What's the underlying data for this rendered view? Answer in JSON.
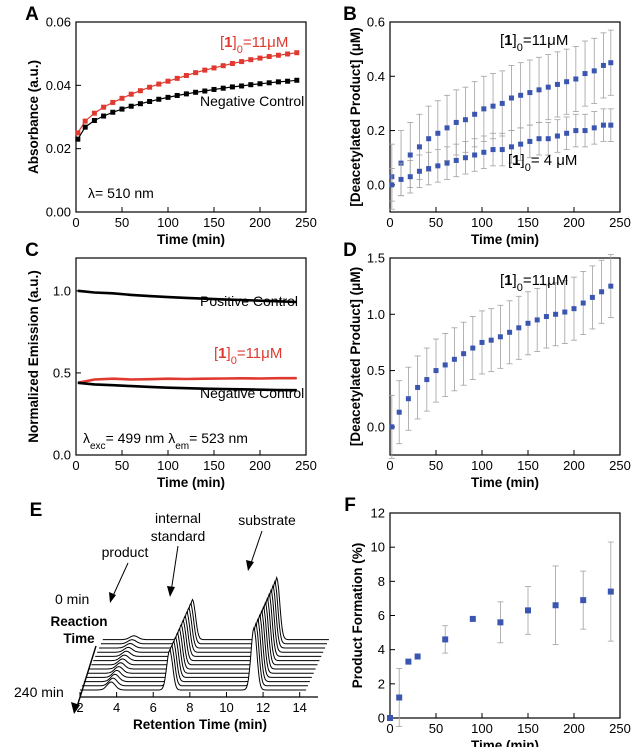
{
  "colors": {
    "red": "#e03a30",
    "black": "#000000",
    "blue": "#3a56b0",
    "error": "#a0a0a0"
  },
  "chart_data": [
    {
      "panel": "A",
      "type": "scatter",
      "xlabel": "Time (min)",
      "ylabel": "Absorbance (a.u.)",
      "xlim": [
        0,
        250
      ],
      "ylim": [
        0,
        0.06
      ],
      "xticks": [
        "0",
        "50",
        "100",
        "150",
        "200",
        "250"
      ],
      "yticks": [
        "0.00",
        "0.02",
        "0.04",
        "0.06"
      ],
      "series": [
        {
          "name": "[1]0=11μM",
          "color": "red",
          "x": [
            2,
            10,
            20,
            30,
            40,
            50,
            60,
            70,
            80,
            90,
            100,
            110,
            120,
            130,
            140,
            150,
            160,
            170,
            180,
            190,
            200,
            210,
            220,
            230,
            240
          ],
          "y": [
            0.025,
            0.0287,
            0.0312,
            0.0331,
            0.0346,
            0.0359,
            0.0372,
            0.0383,
            0.0394,
            0.0404,
            0.0413,
            0.0422,
            0.0431,
            0.044,
            0.0448,
            0.0455,
            0.0462,
            0.0469,
            0.0475,
            0.0481,
            0.0486,
            0.0491,
            0.0495,
            0.0499,
            0.0503
          ]
        },
        {
          "name": "Negative Control",
          "color": "black",
          "x": [
            2,
            10,
            20,
            30,
            40,
            50,
            60,
            70,
            80,
            90,
            100,
            110,
            120,
            130,
            140,
            150,
            160,
            170,
            180,
            190,
            200,
            210,
            220,
            230,
            240
          ],
          "y": [
            0.023,
            0.0268,
            0.0289,
            0.0303,
            0.0315,
            0.0325,
            0.0334,
            0.0342,
            0.0349,
            0.0356,
            0.0362,
            0.0368,
            0.0373,
            0.0378,
            0.0382,
            0.0387,
            0.0391,
            0.0395,
            0.0398,
            0.0402,
            0.0405,
            0.0408,
            0.0411,
            0.0413,
            0.0416
          ]
        }
      ],
      "annotations": [
        {
          "id": "a-red",
          "parts": [
            {
              "t": "["
            },
            {
              "t": "1",
              "b": true
            },
            {
              "t": "]"
            },
            {
              "t": "0",
              "sub": true
            },
            {
              "t": "=11"
            },
            {
              "t": "μ"
            },
            {
              "t": "M"
            }
          ],
          "color": "red"
        },
        {
          "id": "a-neg",
          "parts": [
            {
              "t": "Negative Control"
            }
          ],
          "color": "black"
        },
        {
          "id": "a-lam",
          "parts": [
            {
              "t": "λ= 510 nm"
            }
          ],
          "color": "black"
        }
      ]
    },
    {
      "panel": "B",
      "type": "scatter",
      "xlabel": "Time (min)",
      "ylabel": "[Deacetylated Product] (μM)",
      "xlim": [
        0,
        250
      ],
      "ylim": [
        -0.1,
        0.6
      ],
      "xticks": [
        "0",
        "50",
        "100",
        "150",
        "200",
        "250"
      ],
      "yticks": [
        "0.0",
        "0.2",
        "0.4",
        "0.6"
      ],
      "series": [
        {
          "name": "[1]0=11μM",
          "color": "blue",
          "x": [
            2,
            12,
            22,
            32,
            42,
            52,
            62,
            72,
            82,
            92,
            102,
            112,
            122,
            132,
            142,
            152,
            162,
            172,
            182,
            192,
            202,
            212,
            222,
            232,
            240
          ],
          "y": [
            0.03,
            0.08,
            0.11,
            0.14,
            0.17,
            0.19,
            0.21,
            0.23,
            0.24,
            0.26,
            0.28,
            0.29,
            0.3,
            0.32,
            0.33,
            0.34,
            0.35,
            0.36,
            0.37,
            0.38,
            0.39,
            0.41,
            0.42,
            0.44,
            0.45
          ],
          "err": 0.12
        },
        {
          "name": "[1]0= 4μM",
          "color": "blue",
          "x": [
            2,
            12,
            22,
            32,
            42,
            52,
            62,
            72,
            82,
            92,
            102,
            112,
            122,
            132,
            142,
            152,
            162,
            172,
            182,
            192,
            202,
            212,
            222,
            232,
            240
          ],
          "y": [
            0.0,
            0.02,
            0.03,
            0.05,
            0.06,
            0.07,
            0.08,
            0.09,
            0.1,
            0.11,
            0.12,
            0.13,
            0.13,
            0.14,
            0.15,
            0.16,
            0.17,
            0.17,
            0.18,
            0.19,
            0.2,
            0.2,
            0.21,
            0.22,
            0.22
          ],
          "err": 0.06
        }
      ],
      "annotations": [
        {
          "id": "b-11",
          "parts": [
            {
              "t": "["
            },
            {
              "t": "1",
              "b": true
            },
            {
              "t": "]"
            },
            {
              "t": "0",
              "sub": true
            },
            {
              "t": "=11"
            },
            {
              "t": "μ"
            },
            {
              "t": "M"
            }
          ],
          "color": "black"
        },
        {
          "id": "b-4",
          "parts": [
            {
              "t": "["
            },
            {
              "t": "1",
              "b": true
            },
            {
              "t": "]"
            },
            {
              "t": "0",
              "sub": true
            },
            {
              "t": "= 4 "
            },
            {
              "t": "μ"
            },
            {
              "t": "M"
            }
          ],
          "color": "black"
        }
      ]
    },
    {
      "panel": "C",
      "type": "line",
      "xlabel": "Time (min)",
      "ylabel": "Normalized Emission (a.u.)",
      "xlim": [
        0,
        250
      ],
      "ylim": [
        0,
        1.2
      ],
      "xticks": [
        "0",
        "50",
        "100",
        "150",
        "200",
        "250"
      ],
      "yticks": [
        "0.0",
        "0.5",
        "1.0"
      ],
      "series": [
        {
          "name": "Positive Control",
          "color": "black",
          "x": [
            2,
            20,
            40,
            60,
            80,
            100,
            120,
            140,
            160,
            180,
            200,
            220,
            240
          ],
          "y": [
            1.0,
            0.99,
            0.985,
            0.975,
            0.968,
            0.962,
            0.957,
            0.952,
            0.948,
            0.944,
            0.94,
            0.936,
            0.932
          ]
        },
        {
          "name": "[1]0=11μM",
          "color": "red",
          "x": [
            2,
            20,
            40,
            60,
            80,
            100,
            120,
            140,
            160,
            180,
            200,
            220,
            240
          ],
          "y": [
            0.44,
            0.46,
            0.465,
            0.46,
            0.462,
            0.465,
            0.463,
            0.465,
            0.466,
            0.467,
            0.466,
            0.468,
            0.468
          ]
        },
        {
          "name": "Negative Control",
          "color": "black",
          "x": [
            2,
            20,
            40,
            60,
            80,
            100,
            120,
            140,
            160,
            180,
            200,
            220,
            240
          ],
          "y": [
            0.44,
            0.43,
            0.425,
            0.42,
            0.415,
            0.41,
            0.407,
            0.404,
            0.402,
            0.4,
            0.398,
            0.396,
            0.395
          ]
        }
      ],
      "annotations": [
        {
          "id": "c-pos",
          "parts": [
            {
              "t": "Positive Control"
            }
          ],
          "color": "black"
        },
        {
          "id": "c-red",
          "parts": [
            {
              "t": "["
            },
            {
              "t": "1",
              "b": true
            },
            {
              "t": "]"
            },
            {
              "t": "0",
              "sub": true
            },
            {
              "t": "=11"
            },
            {
              "t": "μ"
            },
            {
              "t": "M"
            }
          ],
          "color": "red"
        },
        {
          "id": "c-neg",
          "parts": [
            {
              "t": "Negative Control"
            }
          ],
          "color": "black"
        },
        {
          "id": "c-lam",
          "parts": [
            {
              "t": "λ"
            },
            {
              "t": "exc",
              "sub": true
            },
            {
              "t": "= 499 nm    λ"
            },
            {
              "t": "em",
              "sub": true
            },
            {
              "t": "= 523 nm"
            }
          ],
          "color": "black"
        }
      ]
    },
    {
      "panel": "D",
      "type": "scatter",
      "xlabel": "Time (min)",
      "ylabel": "[Deacetylated Product] (μM)",
      "xlim": [
        0,
        250
      ],
      "ylim": [
        -0.25,
        1.5
      ],
      "xticks": [
        "0",
        "50",
        "100",
        "150",
        "200",
        "250"
      ],
      "yticks": [
        "0.0",
        "0.5",
        "1.0",
        "1.5"
      ],
      "series": [
        {
          "name": "[1]0=11μM",
          "color": "blue",
          "x": [
            2,
            10,
            20,
            30,
            40,
            50,
            60,
            70,
            80,
            90,
            100,
            110,
            120,
            130,
            140,
            150,
            160,
            170,
            180,
            190,
            200,
            210,
            220,
            230,
            240
          ],
          "y": [
            0.0,
            0.13,
            0.25,
            0.35,
            0.42,
            0.5,
            0.55,
            0.6,
            0.65,
            0.7,
            0.75,
            0.77,
            0.8,
            0.84,
            0.88,
            0.92,
            0.95,
            0.98,
            1.0,
            1.02,
            1.05,
            1.1,
            1.15,
            1.2,
            1.25
          ],
          "err": 0.28
        }
      ],
      "annotations": [
        {
          "id": "d-11",
          "parts": [
            {
              "t": "["
            },
            {
              "t": "1",
              "b": true
            },
            {
              "t": "]"
            },
            {
              "t": "0",
              "sub": true
            },
            {
              "t": "=11"
            },
            {
              "t": "μ"
            },
            {
              "t": "M"
            }
          ],
          "color": "black"
        }
      ]
    },
    {
      "panel": "E",
      "type": "line",
      "xlabel": "Retention Time (min)",
      "ylabel": "Reaction Time",
      "xlim": [
        2,
        15
      ],
      "xticks": [
        "2",
        "4",
        "6",
        "8",
        "10",
        "12",
        "14"
      ],
      "reaction_times": [
        "0 min",
        "240 min"
      ],
      "trace_count": 13,
      "peaks": [
        {
          "name": "product",
          "x": 3.7
        },
        {
          "name": "internal standard",
          "x": 6.9
        },
        {
          "name": "substrate",
          "x": 11.5
        }
      ],
      "annotations": [
        {
          "id": "e-prod",
          "parts": [
            {
              "t": "product"
            }
          ],
          "color": "black"
        },
        {
          "id": "e-int1",
          "parts": [
            {
              "t": "internal"
            }
          ],
          "color": "black"
        },
        {
          "id": "e-int2",
          "parts": [
            {
              "t": "standard"
            }
          ],
          "color": "black"
        },
        {
          "id": "e-sub",
          "parts": [
            {
              "t": "substrate"
            }
          ],
          "color": "black"
        }
      ]
    },
    {
      "panel": "F",
      "type": "scatter",
      "xlabel": "Time (min)",
      "ylabel": "Product Formation (%)",
      "xlim": [
        0,
        250
      ],
      "ylim": [
        0,
        12
      ],
      "xticks": [
        "0",
        "50",
        "100",
        "150",
        "200",
        "250"
      ],
      "yticks": [
        "0",
        "2",
        "4",
        "6",
        "8",
        "10",
        "12"
      ],
      "series": [
        {
          "name": "Product Formation",
          "color": "blue",
          "x": [
            0,
            10,
            20,
            30,
            60,
            90,
            120,
            150,
            180,
            210,
            240
          ],
          "y": [
            0.0,
            1.2,
            3.3,
            3.6,
            4.6,
            5.8,
            5.6,
            6.3,
            6.6,
            6.9,
            7.4
          ],
          "err": [
            0.0,
            1.7,
            0.0,
            0.0,
            0.8,
            0.0,
            1.2,
            1.4,
            2.3,
            1.7,
            2.9
          ]
        }
      ],
      "annotations": []
    }
  ]
}
